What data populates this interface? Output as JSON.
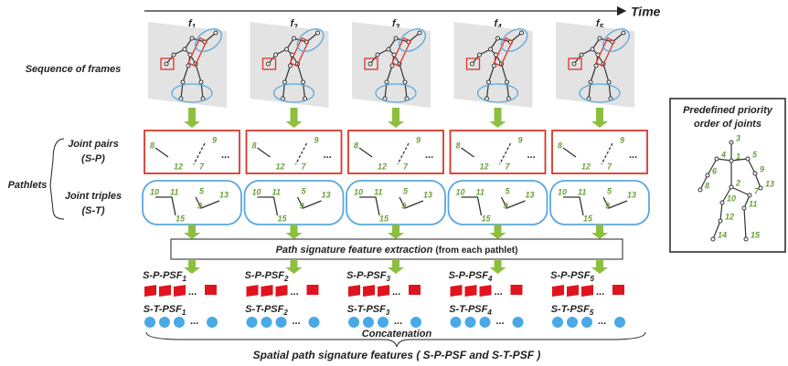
{
  "time_label": "Time",
  "row_labels": {
    "frames": "Sequence of frames",
    "pathlets": "Pathlets",
    "pairs": [
      "Joint pairs",
      "(S-P)"
    ],
    "triples": [
      "Joint triples",
      "(S-T)"
    ]
  },
  "frames": [
    {
      "name": "f",
      "sub": "1",
      "pair_joints": [
        "8",
        "9",
        "12",
        "7"
      ],
      "triple_joints": [
        "10",
        "11",
        "15",
        "5",
        "9",
        "13"
      ],
      "sp_psf": {
        "name": "S-P-PSF",
        "sub": "1"
      },
      "st_psf": {
        "name": "S-T-PSF",
        "sub": "1"
      }
    },
    {
      "name": "f",
      "sub": "2",
      "pair_joints": [
        "8",
        "9",
        "12",
        "7"
      ],
      "triple_joints": [
        "10",
        "11",
        "15",
        "5",
        "9",
        "13"
      ],
      "sp_psf": {
        "name": "S-P-PSF",
        "sub": "2"
      },
      "st_psf": {
        "name": "S-T-PSF",
        "sub": "2"
      }
    },
    {
      "name": "f",
      "sub": "3",
      "pair_joints": [
        "8",
        "9",
        "12",
        "7"
      ],
      "triple_joints": [
        "10",
        "11",
        "15",
        "5",
        "9",
        "13"
      ],
      "sp_psf": {
        "name": "S-P-PSF",
        "sub": "3"
      },
      "st_psf": {
        "name": "S-T-PSF",
        "sub": "3"
      }
    },
    {
      "name": "f",
      "sub": "4",
      "pair_joints": [
        "8",
        "9",
        "12",
        "7"
      ],
      "triple_joints": [
        "10",
        "11",
        "15",
        "5",
        "9",
        "13"
      ],
      "sp_psf": {
        "name": "S-P-PSF",
        "sub": "4"
      },
      "st_psf": {
        "name": "S-T-PSF",
        "sub": "4"
      }
    },
    {
      "name": "f",
      "sub": "5",
      "pair_joints": [
        "8",
        "9",
        "12",
        "7"
      ],
      "triple_joints": [
        "10",
        "11",
        "15",
        "5",
        "9",
        "13"
      ],
      "sp_psf": {
        "name": "S-P-PSF",
        "sub": "5"
      },
      "st_psf": {
        "name": "S-T-PSF",
        "sub": "5"
      }
    }
  ],
  "ellipsis": "...",
  "extraction": {
    "title": "Path signature feature extraction",
    "note": "(from each pathlet)"
  },
  "concatenation": "Concatenation",
  "summary": "Spatial path signature features ( S-P-PSF and S-T-PSF )",
  "priority": {
    "title": [
      "Predefined priority",
      "order of joints"
    ],
    "joints": [
      "1",
      "2",
      "3",
      "4",
      "5",
      "6",
      "7",
      "8",
      "9",
      "10",
      "11",
      "12",
      "13",
      "14",
      "15"
    ]
  }
}
